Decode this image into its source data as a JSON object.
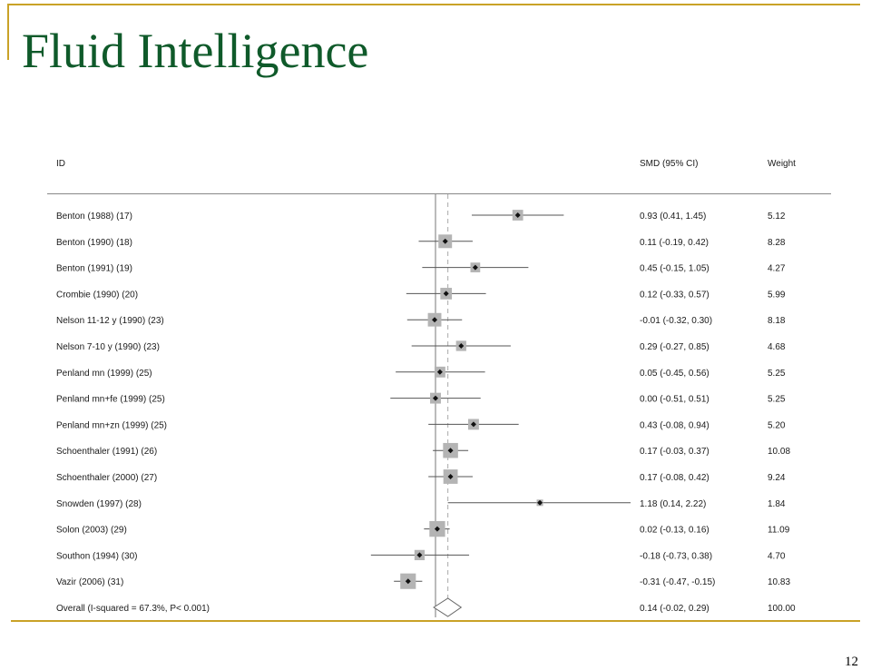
{
  "slide": {
    "title": "Fluid Intelligence",
    "page_number": "12"
  },
  "colors": {
    "title": "#0f5a2a",
    "accent": "#c9a227",
    "box": "#b4b4b4",
    "line": "#555555"
  },
  "chart_data": {
    "type": "forest",
    "columns": {
      "id": "ID",
      "estimate": "SMD (95% CI)",
      "weight": "Weight"
    },
    "null_line": 0,
    "x_range": [
      -0.45,
      1.2
    ],
    "studies": [
      {
        "id": "Benton (1988) (17)",
        "smd": 0.93,
        "lo": 0.41,
        "hi": 1.45,
        "ci_text": "0.93 (0.41, 1.45)",
        "weight": 5.12,
        "weight_text": "5.12"
      },
      {
        "id": "Benton (1990) (18)",
        "smd": 0.11,
        "lo": -0.19,
        "hi": 0.42,
        "ci_text": "0.11 (-0.19, 0.42)",
        "weight": 8.28,
        "weight_text": "8.28"
      },
      {
        "id": "Benton (1991) (19)",
        "smd": 0.45,
        "lo": -0.15,
        "hi": 1.05,
        "ci_text": "0.45 (-0.15, 1.05)",
        "weight": 4.27,
        "weight_text": "4.27"
      },
      {
        "id": "Crombie (1990) (20)",
        "smd": 0.12,
        "lo": -0.33,
        "hi": 0.57,
        "ci_text": "0.12 (-0.33, 0.57)",
        "weight": 5.99,
        "weight_text": "5.99"
      },
      {
        "id": "Nelson 11-12 y (1990) (23)",
        "smd": -0.01,
        "lo": -0.32,
        "hi": 0.3,
        "ci_text": "-0.01 (-0.32, 0.30)",
        "weight": 8.18,
        "weight_text": "8.18"
      },
      {
        "id": "Nelson 7-10 y (1990) (23)",
        "smd": 0.29,
        "lo": -0.27,
        "hi": 0.85,
        "ci_text": "0.29 (-0.27, 0.85)",
        "weight": 4.68,
        "weight_text": "4.68"
      },
      {
        "id": "Penland mn (1999) (25)",
        "smd": 0.05,
        "lo": -0.45,
        "hi": 0.56,
        "ci_text": "0.05 (-0.45, 0.56)",
        "weight": 5.25,
        "weight_text": "5.25"
      },
      {
        "id": "Penland mn+fe (1999) (25)",
        "smd": 0.0,
        "lo": -0.51,
        "hi": 0.51,
        "ci_text": "0.00 (-0.51, 0.51)",
        "weight": 5.25,
        "weight_text": "5.25"
      },
      {
        "id": "Penland mn+zn (1999) (25)",
        "smd": 0.43,
        "lo": -0.08,
        "hi": 0.94,
        "ci_text": "0.43 (-0.08, 0.94)",
        "weight": 5.2,
        "weight_text": "5.20"
      },
      {
        "id": "Schoenthaler (1991) (26)",
        "smd": 0.17,
        "lo": -0.03,
        "hi": 0.37,
        "ci_text": "0.17 (-0.03, 0.37)",
        "weight": 10.08,
        "weight_text": "10.08"
      },
      {
        "id": "Schoenthaler (2000) (27)",
        "smd": 0.17,
        "lo": -0.08,
        "hi": 0.42,
        "ci_text": "0.17 (-0.08, 0.42)",
        "weight": 9.24,
        "weight_text": "9.24"
      },
      {
        "id": "Snowden (1997) (28)",
        "smd": 1.18,
        "lo": 0.14,
        "hi": 2.22,
        "ci_text": "1.18 (0.14, 2.22)",
        "weight": 1.84,
        "weight_text": "1.84"
      },
      {
        "id": "Solon (2003) (29)",
        "smd": 0.02,
        "lo": -0.13,
        "hi": 0.16,
        "ci_text": "0.02 (-0.13, 0.16)",
        "weight": 11.09,
        "weight_text": "11.09"
      },
      {
        "id": "Southon (1994) (30)",
        "smd": -0.18,
        "lo": -0.73,
        "hi": 0.38,
        "ci_text": "-0.18 (-0.73, 0.38)",
        "weight": 4.7,
        "weight_text": "4.70"
      },
      {
        "id": "Vazir (2006) (31)",
        "smd": -0.31,
        "lo": -0.47,
        "hi": -0.15,
        "ci_text": "-0.31 (-0.47, -0.15)",
        "weight": 10.83,
        "weight_text": "10.83"
      }
    ],
    "overall": {
      "id": "Overall  (I-squared = 67.3%, P< 0.001)",
      "smd": 0.14,
      "lo": -0.02,
      "hi": 0.29,
      "ci_text": "0.14 (-0.02, 0.29)",
      "weight_text": "100.00"
    }
  }
}
